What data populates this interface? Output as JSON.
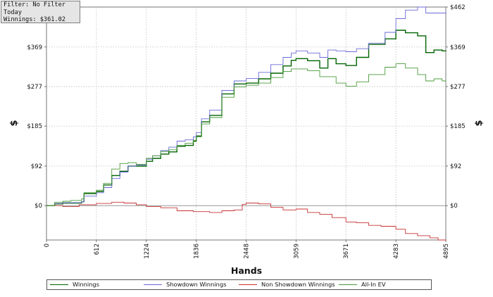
{
  "info": {
    "filter": "Filter: No Filter",
    "period": "Today",
    "winnings": "Winnings: $361.02"
  },
  "chart_data": {
    "type": "line",
    "xlabel": "Hands",
    "ylabel": "$",
    "xlim": [
      0,
      4895
    ],
    "ylim": [
      -80,
      462
    ],
    "x_ticks": [
      0,
      612,
      1224,
      1836,
      2448,
      3059,
      3671,
      4283,
      4895
    ],
    "y_ticks": [
      {
        "value": 0,
        "label": "$0"
      },
      {
        "value": 92,
        "label": "$92"
      },
      {
        "value": 185,
        "label": "$185"
      },
      {
        "value": 277,
        "label": "$277"
      },
      {
        "value": 369,
        "label": "$369"
      },
      {
        "value": 462,
        "label": "$462"
      }
    ],
    "grid": true,
    "legend": "bottom",
    "series": [
      {
        "name": "Winnings",
        "color": "#006400",
        "points": [
          [
            0,
            0
          ],
          [
            100,
            4
          ],
          [
            200,
            6
          ],
          [
            300,
            6
          ],
          [
            430,
            9
          ],
          [
            460,
            28
          ],
          [
            612,
            33
          ],
          [
            700,
            48
          ],
          [
            800,
            70
          ],
          [
            900,
            80
          ],
          [
            1000,
            92
          ],
          [
            1100,
            92
          ],
          [
            1224,
            103
          ],
          [
            1300,
            110
          ],
          [
            1400,
            120
          ],
          [
            1500,
            125
          ],
          [
            1600,
            138
          ],
          [
            1700,
            140
          ],
          [
            1800,
            150
          ],
          [
            1836,
            162
          ],
          [
            1900,
            195
          ],
          [
            2000,
            210
          ],
          [
            2150,
            260
          ],
          [
            2300,
            283
          ],
          [
            2448,
            285
          ],
          [
            2600,
            295
          ],
          [
            2750,
            308
          ],
          [
            2900,
            325
          ],
          [
            3000,
            338
          ],
          [
            3059,
            342
          ],
          [
            3200,
            337
          ],
          [
            3350,
            320
          ],
          [
            3450,
            342
          ],
          [
            3550,
            330
          ],
          [
            3671,
            326
          ],
          [
            3800,
            345
          ],
          [
            3950,
            375
          ],
          [
            4150,
            388
          ],
          [
            4283,
            408
          ],
          [
            4400,
            402
          ],
          [
            4550,
            395
          ],
          [
            4650,
            356
          ],
          [
            4750,
            362
          ],
          [
            4850,
            360
          ],
          [
            4895,
            361
          ]
        ]
      },
      {
        "name": "Showdown Winnings",
        "color": "#6a6ad8",
        "points": [
          [
            0,
            0
          ],
          [
            100,
            5
          ],
          [
            200,
            7
          ],
          [
            300,
            7
          ],
          [
            430,
            9
          ],
          [
            460,
            22
          ],
          [
            612,
            30
          ],
          [
            700,
            42
          ],
          [
            800,
            63
          ],
          [
            900,
            78
          ],
          [
            1000,
            92
          ],
          [
            1100,
            94
          ],
          [
            1224,
            108
          ],
          [
            1300,
            116
          ],
          [
            1400,
            128
          ],
          [
            1500,
            136
          ],
          [
            1600,
            150
          ],
          [
            1700,
            153
          ],
          [
            1800,
            160
          ],
          [
            1836,
            170
          ],
          [
            1900,
            202
          ],
          [
            2000,
            222
          ],
          [
            2150,
            268
          ],
          [
            2300,
            290
          ],
          [
            2448,
            296
          ],
          [
            2600,
            310
          ],
          [
            2750,
            328
          ],
          [
            2900,
            345
          ],
          [
            3000,
            355
          ],
          [
            3059,
            360
          ],
          [
            3200,
            355
          ],
          [
            3350,
            345
          ],
          [
            3450,
            362
          ],
          [
            3550,
            360
          ],
          [
            3671,
            358
          ],
          [
            3800,
            365
          ],
          [
            3950,
            378
          ],
          [
            4150,
            403
          ],
          [
            4283,
            435
          ],
          [
            4400,
            455
          ],
          [
            4550,
            462
          ],
          [
            4650,
            448
          ],
          [
            4750,
            448
          ],
          [
            4850,
            448
          ],
          [
            4895,
            452
          ]
        ]
      },
      {
        "name": "Non Showdown Winnings",
        "color": "#c83232",
        "points": [
          [
            0,
            0
          ],
          [
            200,
            -2
          ],
          [
            400,
            2
          ],
          [
            612,
            5
          ],
          [
            800,
            8
          ],
          [
            950,
            6
          ],
          [
            1100,
            2
          ],
          [
            1224,
            -2
          ],
          [
            1400,
            -5
          ],
          [
            1600,
            -12
          ],
          [
            1800,
            -14
          ],
          [
            2000,
            -16
          ],
          [
            2150,
            -12
          ],
          [
            2300,
            -10
          ],
          [
            2400,
            3
          ],
          [
            2448,
            6
          ],
          [
            2600,
            4
          ],
          [
            2750,
            -4
          ],
          [
            2900,
            -10
          ],
          [
            3059,
            -8
          ],
          [
            3200,
            -16
          ],
          [
            3350,
            -20
          ],
          [
            3500,
            -28
          ],
          [
            3671,
            -38
          ],
          [
            3800,
            -40
          ],
          [
            3950,
            -46
          ],
          [
            4100,
            -48
          ],
          [
            4283,
            -55
          ],
          [
            4400,
            -65
          ],
          [
            4550,
            -70
          ],
          [
            4700,
            -75
          ],
          [
            4800,
            -80
          ],
          [
            4895,
            -82
          ]
        ]
      },
      {
        "name": "All-In EV",
        "color": "#4a9a3a",
        "points": [
          [
            0,
            0
          ],
          [
            100,
            8
          ],
          [
            200,
            10
          ],
          [
            300,
            12
          ],
          [
            430,
            16
          ],
          [
            460,
            30
          ],
          [
            612,
            36
          ],
          [
            700,
            52
          ],
          [
            800,
            85
          ],
          [
            900,
            98
          ],
          [
            1000,
            100
          ],
          [
            1100,
            96
          ],
          [
            1224,
            110
          ],
          [
            1300,
            116
          ],
          [
            1400,
            126
          ],
          [
            1500,
            130
          ],
          [
            1600,
            140
          ],
          [
            1700,
            145
          ],
          [
            1800,
            152
          ],
          [
            1836,
            160
          ],
          [
            1900,
            190
          ],
          [
            2000,
            205
          ],
          [
            2150,
            252
          ],
          [
            2300,
            276
          ],
          [
            2448,
            280
          ],
          [
            2600,
            285
          ],
          [
            2750,
            298
          ],
          [
            2900,
            312
          ],
          [
            3000,
            318
          ],
          [
            3059,
            318
          ],
          [
            3200,
            314
          ],
          [
            3350,
            300
          ],
          [
            3450,
            300
          ],
          [
            3550,
            285
          ],
          [
            3671,
            278
          ],
          [
            3800,
            288
          ],
          [
            3950,
            305
          ],
          [
            4150,
            322
          ],
          [
            4283,
            330
          ],
          [
            4400,
            320
          ],
          [
            4550,
            305
          ],
          [
            4650,
            290
          ],
          [
            4750,
            295
          ],
          [
            4850,
            290
          ],
          [
            4895,
            292
          ]
        ]
      }
    ]
  }
}
